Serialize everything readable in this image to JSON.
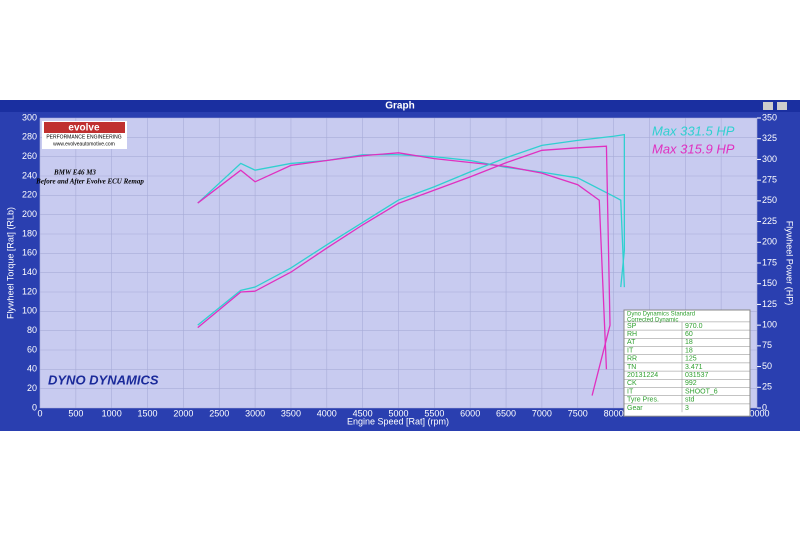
{
  "window_title": "Graph",
  "chart_data": {
    "type": "line",
    "xlabel": "Engine Speed [Rat] (rpm)",
    "ylabel": "Flywheel Torque [Rat] (RLb)",
    "y2label": "Flywheel Power (HP)",
    "annotations": [
      "Max 331.5 HP",
      "Max 315.9 HP"
    ],
    "annotation_colors": [
      "#30d0d0",
      "#e030c0"
    ],
    "subtitle": [
      "BMW E46 M3",
      "Before and After Evolve ECU Remap"
    ],
    "xlim": [
      0,
      10000
    ],
    "xticks": [
      0,
      500,
      1000,
      1500,
      2000,
      2500,
      3000,
      3500,
      4000,
      4500,
      5000,
      5500,
      6000,
      6500,
      7000,
      7500,
      8000,
      8500,
      9000,
      9500,
      10000
    ],
    "ylim": [
      0,
      300
    ],
    "yticks": [
      0,
      20,
      40,
      60,
      80,
      100,
      120,
      140,
      160,
      180,
      200,
      220,
      240,
      260,
      280,
      300
    ],
    "y2lim": [
      0,
      350
    ],
    "y2ticks": [
      0,
      25,
      50,
      75,
      100,
      125,
      150,
      175,
      200,
      225,
      250,
      275,
      300,
      325,
      350
    ],
    "series": [
      {
        "name": "After Torque",
        "color": "#30d0d0",
        "axis": "y",
        "x": [
          2200,
          2800,
          3000,
          3500,
          4000,
          4500,
          5000,
          5500,
          6000,
          6500,
          7000,
          7500,
          8000,
          8100,
          8150
        ],
        "values": [
          212,
          253,
          246,
          253,
          256,
          262,
          262,
          260,
          256,
          249,
          244,
          238,
          219,
          215,
          125
        ]
      },
      {
        "name": "Before Torque",
        "color": "#e030c0",
        "axis": "y",
        "x": [
          2200,
          2800,
          3000,
          3500,
          4000,
          4500,
          5000,
          5500,
          6000,
          6500,
          7000,
          7500,
          7800,
          7900
        ],
        "values": [
          212,
          246,
          234,
          251,
          256,
          261,
          264,
          258,
          254,
          250,
          243,
          231,
          215,
          40
        ]
      },
      {
        "name": "After Power",
        "color": "#30d0d0",
        "axis": "y2",
        "x": [
          2200,
          2800,
          3000,
          3500,
          4000,
          4500,
          5000,
          5500,
          6000,
          6500,
          7000,
          7500,
          8000,
          8150,
          8150,
          8100
        ],
        "values": [
          100,
          142,
          146,
          169,
          197,
          224,
          251,
          267,
          285,
          302,
          317,
          323,
          328,
          330,
          190,
          146
        ]
      },
      {
        "name": "Before Power",
        "color": "#e030c0",
        "axis": "y2",
        "x": [
          2200,
          2800,
          3000,
          3500,
          4000,
          4500,
          5000,
          5500,
          6000,
          6500,
          7000,
          7500,
          7900,
          7950,
          7700
        ],
        "values": [
          97,
          140,
          141,
          164,
          193,
          221,
          247,
          263,
          279,
          296,
          311,
          314,
          316,
          100,
          15
        ]
      }
    ]
  },
  "logo": {
    "name": "evolve",
    "tagline": "PERFORMANCE ENGINEERING",
    "url": "www.evolveautomotive.com"
  },
  "brand": "DYNO DYNAMICS",
  "info_table": {
    "title": [
      "Dyno Dynamics Standard",
      "Corrected Dynamic"
    ],
    "rows": [
      [
        "SP",
        "970.0"
      ],
      [
        "RH",
        "60"
      ],
      [
        "AT",
        "18"
      ],
      [
        "IT",
        "18"
      ],
      [
        "RR",
        "125"
      ],
      [
        "TN",
        "3.471"
      ],
      [
        "20131224",
        "031537"
      ],
      [
        "CK",
        "992"
      ],
      [
        "IT",
        "SHOOT_6"
      ],
      [
        "Tyre Pres.",
        "std"
      ],
      [
        "Gear",
        "3"
      ]
    ]
  }
}
